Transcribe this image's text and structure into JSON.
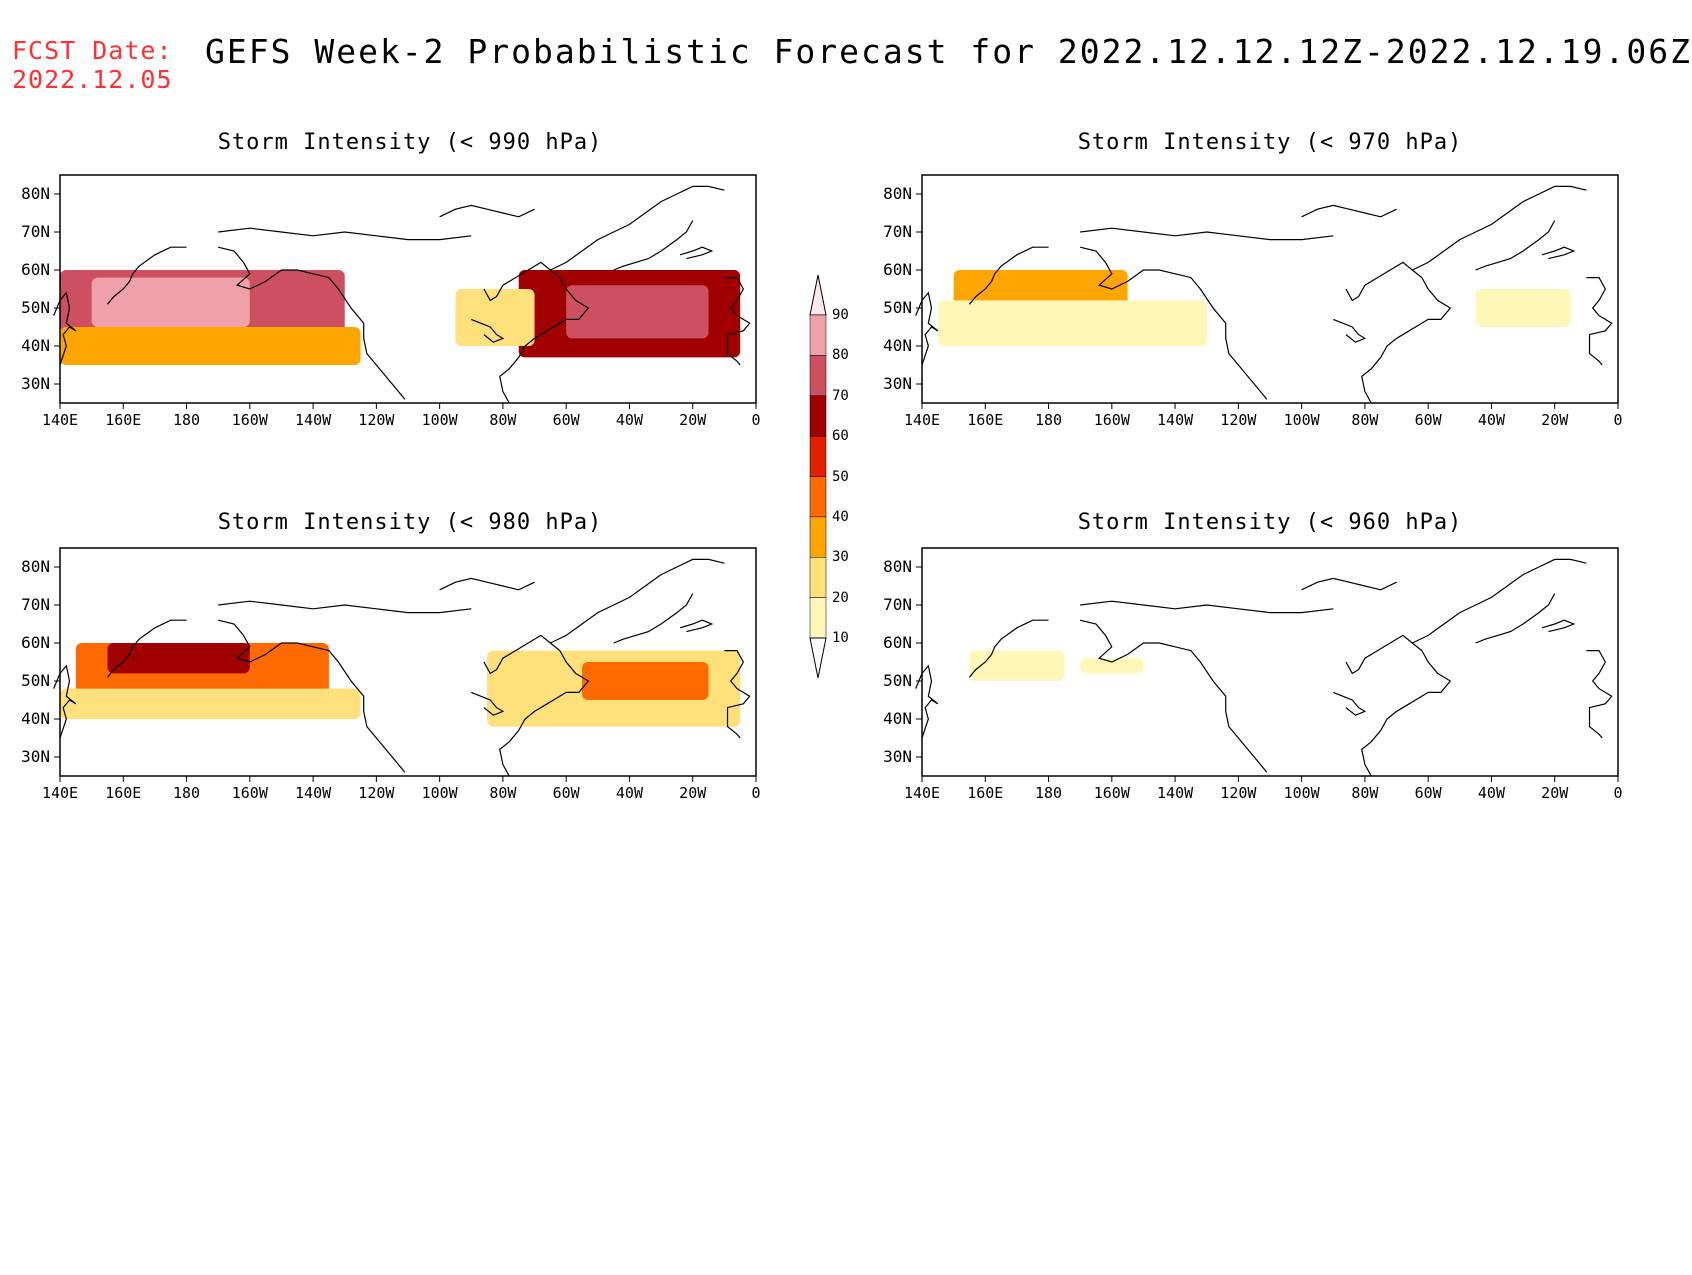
{
  "fcst_date": {
    "label": "FCST Date:",
    "value": "2022.12.05"
  },
  "title": "GEFS Week-2 Probabilistic Forecast for 2022.12.12.12Z-2022.12.19.06Z",
  "panels": [
    {
      "id": "p990",
      "title": "Storm Intensity (< 990 hPa)"
    },
    {
      "id": "p970",
      "title": "Storm Intensity (< 970 hPa)"
    },
    {
      "id": "p980",
      "title": "Storm Intensity (< 980 hPa)"
    },
    {
      "id": "p960",
      "title": "Storm Intensity (< 960 hPa)"
    }
  ],
  "lat_labels": [
    "80N",
    "70N",
    "60N",
    "50N",
    "40N",
    "30N"
  ],
  "lon_labels": [
    "140E",
    "160E",
    "180",
    "160W",
    "140W",
    "120W",
    "100W",
    "80W",
    "60W",
    "40W",
    "20W",
    "0"
  ],
  "colorbar": {
    "levels": [
      "10",
      "20",
      "30",
      "40",
      "50",
      "60",
      "70",
      "80",
      "90"
    ],
    "colors": [
      "#ffffff",
      "#fff7b8",
      "#ffe07a",
      "#ffa500",
      "#ff6a00",
      "#e02000",
      "#a00000",
      "#cc5060",
      "#f0a0a8",
      "#ffe8ec"
    ]
  },
  "map_data": {
    "p990": [
      {
        "lon": [
          140,
          230
        ],
        "lat": [
          40,
          60
        ],
        "level": 7
      },
      {
        "lon": [
          150,
          200
        ],
        "lat": [
          45,
          58
        ],
        "level": 8
      },
      {
        "lon": [
          140,
          235
        ],
        "lat": [
          35,
          45
        ],
        "level": 3
      },
      {
        "lon": [
          285,
          355
        ],
        "lat": [
          37,
          60
        ],
        "level": 6
      },
      {
        "lon": [
          300,
          345
        ],
        "lat": [
          42,
          56
        ],
        "level": 7
      },
      {
        "lon": [
          265,
          290
        ],
        "lat": [
          40,
          55
        ],
        "level": 2
      }
    ],
    "p980": [
      {
        "lon": [
          145,
          225
        ],
        "lat": [
          45,
          60
        ],
        "level": 4
      },
      {
        "lon": [
          155,
          200
        ],
        "lat": [
          52,
          60
        ],
        "level": 6
      },
      {
        "lon": [
          140,
          235
        ],
        "lat": [
          40,
          48
        ],
        "level": 2
      },
      {
        "lon": [
          275,
          355
        ],
        "lat": [
          38,
          58
        ],
        "level": 2
      },
      {
        "lon": [
          305,
          345
        ],
        "lat": [
          45,
          55
        ],
        "level": 4
      }
    ],
    "p970": [
      {
        "lon": [
          150,
          205
        ],
        "lat": [
          45,
          60
        ],
        "level": 3
      },
      {
        "lon": [
          145,
          230
        ],
        "lat": [
          40,
          52
        ],
        "level": 1
      },
      {
        "lon": [
          315,
          345
        ],
        "lat": [
          45,
          55
        ],
        "level": 1
      }
    ],
    "p960": [
      {
        "lon": [
          155,
          185
        ],
        "lat": [
          50,
          58
        ],
        "level": 1
      },
      {
        "lon": [
          190,
          210
        ],
        "lat": [
          52,
          56
        ],
        "level": 1
      }
    ]
  }
}
